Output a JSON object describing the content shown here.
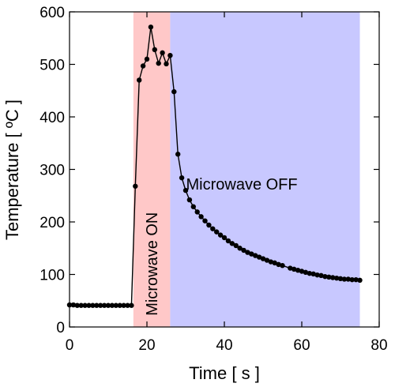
{
  "chart_data": {
    "type": "line",
    "xlabel": "Time [ s ]",
    "ylabel": "Temperature [ ºC ]",
    "xlim": [
      0,
      80
    ],
    "ylim": [
      0,
      600
    ],
    "xticks": [
      0,
      20,
      40,
      60,
      80
    ],
    "yticks": [
      0,
      100,
      200,
      300,
      400,
      500,
      600
    ],
    "grid": false,
    "regions": [
      {
        "label": "Microwave ON",
        "x_start": 16.5,
        "x_end": 26.0,
        "color": "#ffc8c8",
        "label_orientation": "vertical"
      },
      {
        "label": "Microwave OFF",
        "x_start": 26.0,
        "x_end": 75.0,
        "color": "#c8c8ff",
        "label_orientation": "horizontal"
      }
    ],
    "series": [
      {
        "color": "#000000",
        "marker": "circle",
        "x": [
          0,
          1,
          2,
          3,
          4,
          5,
          6,
          7,
          8,
          9,
          10,
          11,
          12,
          13,
          14,
          15,
          16,
          17,
          18,
          19,
          20,
          21,
          22,
          23,
          24,
          25,
          26,
          27,
          28,
          29,
          30,
          31,
          32,
          33,
          34,
          35,
          36,
          37,
          38,
          39,
          40,
          41,
          42,
          43,
          44,
          45,
          46,
          47,
          48,
          49,
          50,
          51,
          52,
          53,
          54,
          55,
          57,
          58,
          59,
          60,
          61,
          62,
          63,
          64,
          65,
          66,
          67,
          68,
          69,
          70,
          71,
          72,
          73,
          74,
          75
        ],
        "y": [
          42,
          42,
          41,
          41,
          41,
          41,
          41,
          41,
          41,
          41,
          41,
          41,
          41,
          41,
          41,
          41,
          41,
          268,
          470,
          497,
          510,
          571,
          528,
          502,
          522,
          501,
          517,
          448,
          329,
          284,
          260,
          242,
          229,
          219,
          210,
          202,
          194,
          187,
          181,
          175,
          170,
          164,
          159,
          155,
          150,
          146,
          142,
          139,
          136,
          133,
          130,
          127,
          124,
          122,
          119,
          117,
          112,
          110,
          108,
          106,
          104,
          102,
          101,
          99,
          98,
          96,
          95,
          94,
          93,
          92,
          91,
          91,
          90,
          90,
          89
        ]
      }
    ]
  }
}
